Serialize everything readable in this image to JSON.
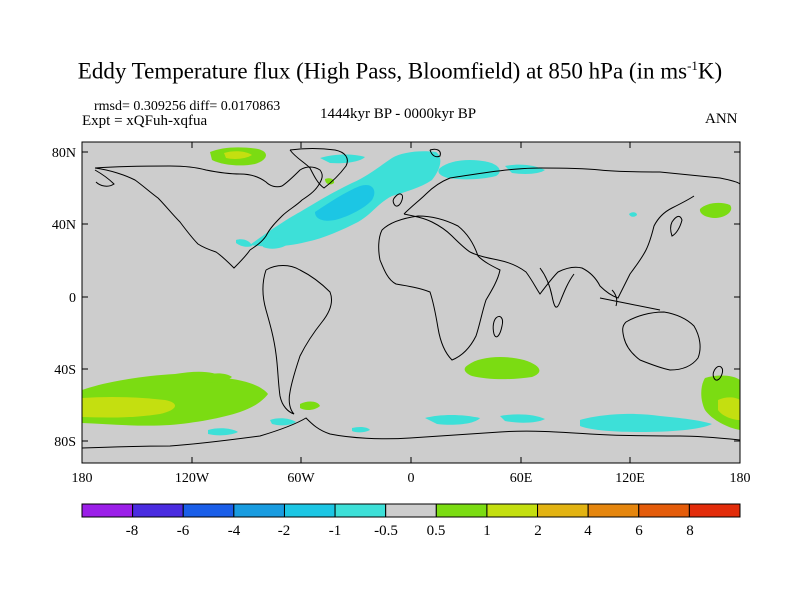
{
  "title": {
    "main": "Eddy Temperature flux (High Pass, Bloomfield) at 850 hPa (in ms",
    "sup": "-1",
    "tail": "K)"
  },
  "stats": "rmsd= 0.309256  diff= 0.0170863",
  "experiment": "Expt = xQFuh-xqfua",
  "period": "1444kyr BP - 0000kyr BP",
  "season": "ANN",
  "lat_labels": [
    "80N",
    "40N",
    "0",
    "40S",
    "80S"
  ],
  "lon_labels": [
    "180",
    "120W",
    "60W",
    "0",
    "60E",
    "120E",
    "180"
  ],
  "colorbar": {
    "labels": [
      "-8",
      "-6",
      "-4",
      "-2",
      "-1",
      "-0.5",
      "0.5",
      "1",
      "2",
      "4",
      "6",
      "8"
    ],
    "colors": [
      "#9b1fe8",
      "#4a2ce0",
      "#1a5ee8",
      "#199ce0",
      "#1cc6e4",
      "#3de0d8",
      "#cdcdcd",
      "#7bdc12",
      "#c4df10",
      "#e2b312",
      "#e5860e",
      "#e45c0a",
      "#e22c0a"
    ]
  },
  "map_data": {
    "lon_range": [
      -180,
      180
    ],
    "lat_range": [
      -90,
      90
    ],
    "background_color": "#cdcdcd",
    "regions": [
      {
        "level": "-0.5 to -1",
        "area": "North Atlantic / Greenland-Norwegian Sea"
      },
      {
        "level": "-0.5 to -1",
        "area": "Northern Europe / Barents Sea"
      },
      {
        "level": "-0.5 to -1",
        "area": "Southern Ocean south of Australia"
      },
      {
        "level": "0.5 to 1",
        "area": "Southern Ocean South Pacific"
      },
      {
        "level": "1 to 2",
        "area": "Southern Ocean 55S-65S Pacific sector"
      },
      {
        "level": "0.5 to 1",
        "area": "North Pacific near Kamchatka"
      },
      {
        "level": "0.5 to 1",
        "area": "South Indian Ocean 40S"
      }
    ]
  }
}
